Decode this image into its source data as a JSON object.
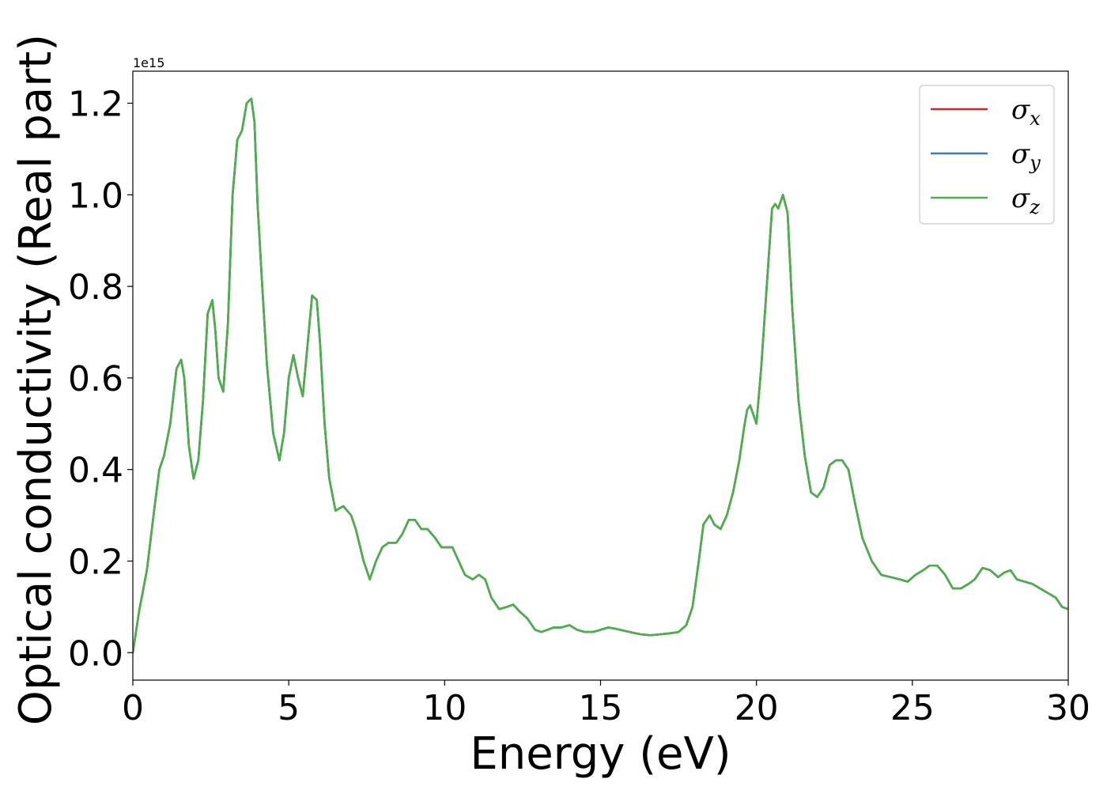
{
  "chart_data": {
    "type": "line",
    "xlabel": "Energy (eV)",
    "ylabel": "Optical conductivity (Real part)",
    "offset_text": "1e15",
    "xlim": [
      0,
      30
    ],
    "ylim": [
      -0.06,
      1.27
    ],
    "y_scale_multiplier": 1000000000000000.0,
    "xticks": [
      0,
      5,
      10,
      15,
      20,
      25,
      30
    ],
    "xtick_labels": [
      "0",
      "5",
      "10",
      "15",
      "20",
      "25",
      "30"
    ],
    "yticks": [
      0.0,
      0.2,
      0.4,
      0.6,
      0.8,
      1.0,
      1.2
    ],
    "ytick_labels": [
      "0.0",
      "0.2",
      "0.4",
      "0.6",
      "0.8",
      "1.0",
      "1.2"
    ],
    "grid": false,
    "legend_position": "top-right",
    "x": [
      0,
      0.2,
      0.45,
      0.7,
      0.85,
      1.0,
      1.2,
      1.4,
      1.55,
      1.65,
      1.8,
      1.95,
      2.1,
      2.25,
      2.4,
      2.55,
      2.65,
      2.75,
      2.9,
      3.05,
      3.2,
      3.35,
      3.5,
      3.65,
      3.8,
      3.9,
      4.0,
      4.15,
      4.3,
      4.5,
      4.7,
      4.85,
      5.0,
      5.15,
      5.3,
      5.45,
      5.6,
      5.75,
      5.9,
      6.0,
      6.15,
      6.3,
      6.5,
      6.75,
      7.0,
      7.15,
      7.4,
      7.6,
      7.8,
      8.0,
      8.2,
      8.45,
      8.65,
      8.85,
      9.05,
      9.25,
      9.45,
      9.7,
      9.9,
      10.05,
      10.25,
      10.45,
      10.65,
      10.9,
      11.1,
      11.3,
      11.5,
      11.75,
      12.0,
      12.2,
      12.4,
      12.65,
      12.9,
      13.1,
      13.3,
      13.5,
      13.75,
      14.0,
      14.25,
      14.5,
      14.75,
      15.0,
      15.25,
      15.5,
      15.75,
      16.0,
      16.3,
      16.6,
      16.9,
      17.2,
      17.5,
      17.75,
      17.95,
      18.15,
      18.3,
      18.5,
      18.65,
      18.85,
      19.05,
      19.25,
      19.45,
      19.6,
      19.7,
      19.8,
      19.9,
      20.0,
      20.15,
      20.35,
      20.5,
      20.6,
      20.7,
      20.85,
      21.0,
      21.15,
      21.35,
      21.55,
      21.75,
      21.95,
      22.15,
      22.35,
      22.55,
      22.75,
      22.95,
      23.15,
      23.4,
      23.7,
      24.0,
      24.3,
      24.6,
      24.85,
      25.1,
      25.35,
      25.55,
      25.8,
      26.05,
      26.3,
      26.55,
      26.8,
      27.0,
      27.25,
      27.5,
      27.75,
      27.95,
      28.15,
      28.35,
      28.6,
      28.85,
      29.1,
      29.35,
      29.6,
      29.8,
      30.0
    ],
    "series": [
      {
        "name": "σx",
        "color": "#d62728",
        "y": [
          0.0,
          0.09,
          0.18,
          0.32,
          0.4,
          0.43,
          0.5,
          0.62,
          0.64,
          0.6,
          0.45,
          0.38,
          0.42,
          0.55,
          0.74,
          0.77,
          0.7,
          0.6,
          0.57,
          0.72,
          1.0,
          1.12,
          1.14,
          1.2,
          1.21,
          1.16,
          0.98,
          0.8,
          0.63,
          0.48,
          0.42,
          0.48,
          0.6,
          0.65,
          0.6,
          0.56,
          0.67,
          0.78,
          0.77,
          0.68,
          0.5,
          0.38,
          0.31,
          0.32,
          0.3,
          0.27,
          0.2,
          0.16,
          0.2,
          0.23,
          0.24,
          0.24,
          0.26,
          0.29,
          0.29,
          0.27,
          0.27,
          0.25,
          0.23,
          0.23,
          0.23,
          0.2,
          0.17,
          0.16,
          0.17,
          0.16,
          0.12,
          0.095,
          0.1,
          0.105,
          0.09,
          0.075,
          0.05,
          0.045,
          0.05,
          0.055,
          0.055,
          0.06,
          0.05,
          0.045,
          0.045,
          0.05,
          0.055,
          0.052,
          0.048,
          0.044,
          0.04,
          0.038,
          0.04,
          0.042,
          0.045,
          0.06,
          0.1,
          0.2,
          0.28,
          0.3,
          0.28,
          0.27,
          0.3,
          0.35,
          0.42,
          0.49,
          0.53,
          0.54,
          0.52,
          0.5,
          0.62,
          0.82,
          0.97,
          0.98,
          0.97,
          1.0,
          0.96,
          0.75,
          0.55,
          0.43,
          0.35,
          0.34,
          0.36,
          0.41,
          0.42,
          0.42,
          0.4,
          0.33,
          0.25,
          0.2,
          0.17,
          0.165,
          0.16,
          0.155,
          0.17,
          0.18,
          0.19,
          0.19,
          0.17,
          0.14,
          0.14,
          0.15,
          0.16,
          0.185,
          0.18,
          0.165,
          0.175,
          0.18,
          0.16,
          0.155,
          0.15,
          0.14,
          0.13,
          0.12,
          0.1,
          0.095
        ]
      },
      {
        "name": "σy",
        "color": "#377eb8",
        "y": [
          0.0,
          0.09,
          0.18,
          0.32,
          0.4,
          0.43,
          0.5,
          0.62,
          0.64,
          0.6,
          0.45,
          0.38,
          0.42,
          0.55,
          0.74,
          0.77,
          0.7,
          0.6,
          0.57,
          0.72,
          1.0,
          1.12,
          1.14,
          1.2,
          1.21,
          1.16,
          0.98,
          0.8,
          0.63,
          0.48,
          0.42,
          0.48,
          0.6,
          0.65,
          0.6,
          0.56,
          0.67,
          0.78,
          0.77,
          0.68,
          0.5,
          0.38,
          0.31,
          0.32,
          0.3,
          0.27,
          0.2,
          0.16,
          0.2,
          0.23,
          0.24,
          0.24,
          0.26,
          0.29,
          0.29,
          0.27,
          0.27,
          0.25,
          0.23,
          0.23,
          0.23,
          0.2,
          0.17,
          0.16,
          0.17,
          0.16,
          0.12,
          0.095,
          0.1,
          0.105,
          0.09,
          0.075,
          0.05,
          0.045,
          0.05,
          0.055,
          0.055,
          0.06,
          0.05,
          0.045,
          0.045,
          0.05,
          0.055,
          0.052,
          0.048,
          0.044,
          0.04,
          0.038,
          0.04,
          0.042,
          0.045,
          0.06,
          0.1,
          0.2,
          0.28,
          0.3,
          0.28,
          0.27,
          0.3,
          0.35,
          0.42,
          0.49,
          0.53,
          0.54,
          0.52,
          0.5,
          0.62,
          0.82,
          0.97,
          0.98,
          0.97,
          1.0,
          0.96,
          0.75,
          0.55,
          0.43,
          0.35,
          0.34,
          0.36,
          0.41,
          0.42,
          0.42,
          0.4,
          0.33,
          0.25,
          0.2,
          0.17,
          0.165,
          0.16,
          0.155,
          0.17,
          0.18,
          0.19,
          0.19,
          0.17,
          0.14,
          0.14,
          0.15,
          0.16,
          0.185,
          0.18,
          0.165,
          0.175,
          0.18,
          0.16,
          0.155,
          0.15,
          0.14,
          0.13,
          0.12,
          0.1,
          0.095
        ]
      },
      {
        "name": "σz",
        "color": "#4daf4a",
        "y": [
          0.0,
          0.09,
          0.18,
          0.32,
          0.4,
          0.43,
          0.5,
          0.62,
          0.64,
          0.6,
          0.45,
          0.38,
          0.42,
          0.55,
          0.74,
          0.77,
          0.7,
          0.6,
          0.57,
          0.72,
          1.0,
          1.12,
          1.14,
          1.2,
          1.21,
          1.16,
          0.98,
          0.8,
          0.63,
          0.48,
          0.42,
          0.48,
          0.6,
          0.65,
          0.6,
          0.56,
          0.67,
          0.78,
          0.77,
          0.68,
          0.5,
          0.38,
          0.31,
          0.32,
          0.3,
          0.27,
          0.2,
          0.16,
          0.2,
          0.23,
          0.24,
          0.24,
          0.26,
          0.29,
          0.29,
          0.27,
          0.27,
          0.25,
          0.23,
          0.23,
          0.23,
          0.2,
          0.17,
          0.16,
          0.17,
          0.16,
          0.12,
          0.095,
          0.1,
          0.105,
          0.09,
          0.075,
          0.05,
          0.045,
          0.05,
          0.055,
          0.055,
          0.06,
          0.05,
          0.045,
          0.045,
          0.05,
          0.055,
          0.052,
          0.048,
          0.044,
          0.04,
          0.038,
          0.04,
          0.042,
          0.045,
          0.06,
          0.1,
          0.2,
          0.28,
          0.3,
          0.28,
          0.27,
          0.3,
          0.35,
          0.42,
          0.49,
          0.53,
          0.54,
          0.52,
          0.5,
          0.62,
          0.82,
          0.97,
          0.98,
          0.97,
          1.0,
          0.96,
          0.75,
          0.55,
          0.43,
          0.35,
          0.34,
          0.36,
          0.41,
          0.42,
          0.42,
          0.4,
          0.33,
          0.25,
          0.2,
          0.17,
          0.165,
          0.16,
          0.155,
          0.17,
          0.18,
          0.19,
          0.19,
          0.17,
          0.14,
          0.14,
          0.15,
          0.16,
          0.185,
          0.18,
          0.165,
          0.175,
          0.18,
          0.16,
          0.155,
          0.15,
          0.14,
          0.13,
          0.12,
          0.1,
          0.095
        ]
      }
    ]
  }
}
